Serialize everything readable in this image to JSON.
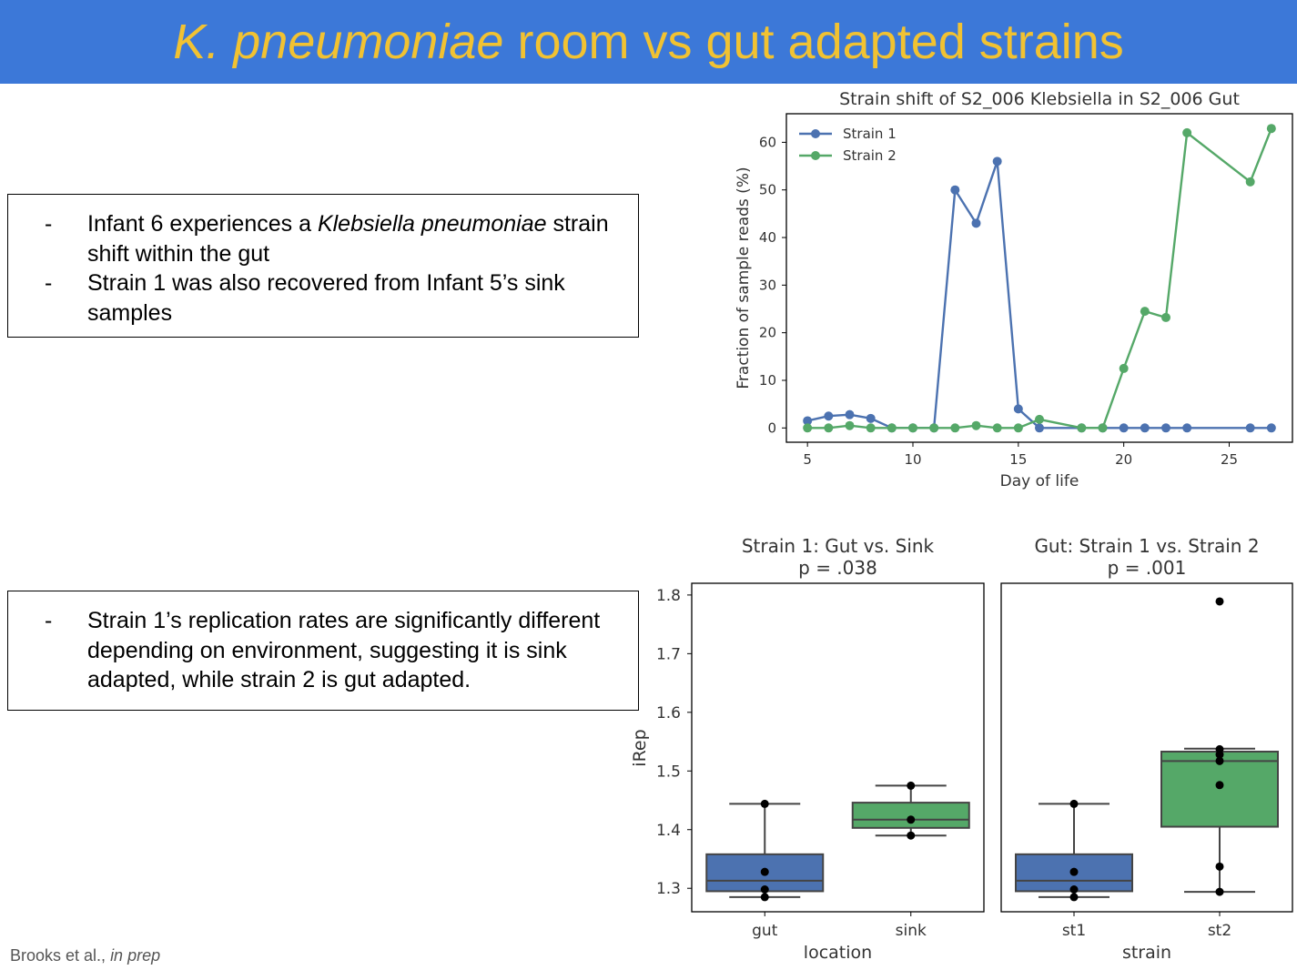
{
  "slide": {
    "title_species": "K. pneumoniae",
    "title_rest": " room vs gut adapted strains",
    "title_color": "#f1c232",
    "banner_color": "#3c78d8"
  },
  "notes": [
    {
      "bullets": [
        {
          "dash": "-",
          "prefix": "Infant 6 experiences a ",
          "em": "Klebsiella pneumoniae",
          "suffix": " strain shift  within the gut"
        },
        {
          "dash": "-",
          "prefix": "Strain 1 was also recovered from Infant 5’s sink samples",
          "em": "",
          "suffix": ""
        }
      ]
    },
    {
      "bullets": [
        {
          "dash": "-",
          "prefix": "Strain 1’s replication rates are significantly different depending on environment, suggesting it is sink adapted, while strain 2 is gut adapted.",
          "em": "",
          "suffix": ""
        }
      ]
    }
  ],
  "citation": {
    "authors": "Brooks et al., ",
    "status": "in prep"
  },
  "chart_data": [
    {
      "type": "line",
      "title": "Strain shift of S2_006 Klebsiella in S2_006 Gut",
      "xlabel": "Day of life",
      "ylabel": "Fraction of sample reads (%)",
      "xlim": [
        4,
        28
      ],
      "ylim": [
        -3,
        66
      ],
      "xticks": [
        5,
        10,
        15,
        20,
        25
      ],
      "yticks": [
        0,
        10,
        20,
        30,
        40,
        50,
        60
      ],
      "legend": "top-left",
      "grid": false,
      "series": [
        {
          "name": "Strain 1",
          "color": "#4c72b0",
          "points": [
            [
              5,
              1.5
            ],
            [
              6,
              2.5
            ],
            [
              7,
              2.8
            ],
            [
              8,
              2.0
            ],
            [
              9,
              0
            ],
            [
              10,
              0
            ],
            [
              11,
              0
            ],
            [
              12,
              50
            ],
            [
              13,
              43
            ],
            [
              14,
              56
            ],
            [
              15,
              4
            ],
            [
              16,
              0
            ],
            [
              18,
              0
            ],
            [
              19,
              0
            ],
            [
              20,
              0
            ],
            [
              21,
              0
            ],
            [
              22,
              0
            ],
            [
              23,
              0
            ],
            [
              26,
              0
            ],
            [
              27,
              0
            ]
          ]
        },
        {
          "name": "Strain 2",
          "color": "#55a868",
          "points": [
            [
              5,
              0
            ],
            [
              6,
              0
            ],
            [
              7,
              0.5
            ],
            [
              8,
              0
            ],
            [
              9,
              0
            ],
            [
              10,
              0
            ],
            [
              11,
              0
            ],
            [
              12,
              0
            ],
            [
              13,
              0.5
            ],
            [
              14,
              0
            ],
            [
              15,
              0
            ],
            [
              16,
              1.8
            ],
            [
              18,
              0
            ],
            [
              19,
              0
            ],
            [
              20,
              12.5
            ],
            [
              21,
              24.5
            ],
            [
              22,
              23.2
            ],
            [
              23,
              62
            ],
            [
              26,
              51.7
            ],
            [
              27,
              62.9
            ]
          ]
        }
      ]
    },
    {
      "type": "box",
      "title": "Strain 1: Gut vs. Sink",
      "subtitle": "p = .038",
      "xlabel": "location",
      "ylabel": "iRep",
      "ylim": [
        1.26,
        1.82
      ],
      "yticks": [
        1.3,
        1.4,
        1.5,
        1.6,
        1.7,
        1.8
      ],
      "categories": [
        "gut",
        "sink"
      ],
      "boxes": [
        {
          "category": "gut",
          "color": "#4c72b0",
          "whisker_low": 1.285,
          "q1": 1.295,
          "median": 1.313,
          "q3": 1.358,
          "whisker_high": 1.444,
          "points": [
            1.444,
            1.328,
            1.298,
            1.285
          ]
        },
        {
          "category": "sink",
          "color": "#55a868",
          "whisker_low": 1.39,
          "q1": 1.403,
          "median": 1.417,
          "q3": 1.446,
          "whisker_high": 1.475,
          "points": [
            1.475,
            1.417,
            1.39
          ]
        }
      ]
    },
    {
      "type": "box",
      "title": "Gut: Strain 1 vs. Strain 2",
      "subtitle": "p = .001",
      "xlabel": "strain",
      "ylabel": "",
      "ylim": [
        1.26,
        1.82
      ],
      "categories": [
        "st1",
        "st2"
      ],
      "boxes": [
        {
          "category": "st1",
          "color": "#4c72b0",
          "whisker_low": 1.285,
          "q1": 1.295,
          "median": 1.313,
          "q3": 1.358,
          "whisker_high": 1.444,
          "points": [
            1.444,
            1.328,
            1.298,
            1.285
          ]
        },
        {
          "category": "st2",
          "color": "#55a868",
          "whisker_low": 1.294,
          "q1": 1.405,
          "median": 1.517,
          "q3": 1.533,
          "whisker_high": 1.538,
          "points": [
            1.789,
            1.537,
            1.528,
            1.517,
            1.476,
            1.337,
            1.294
          ]
        }
      ]
    }
  ]
}
